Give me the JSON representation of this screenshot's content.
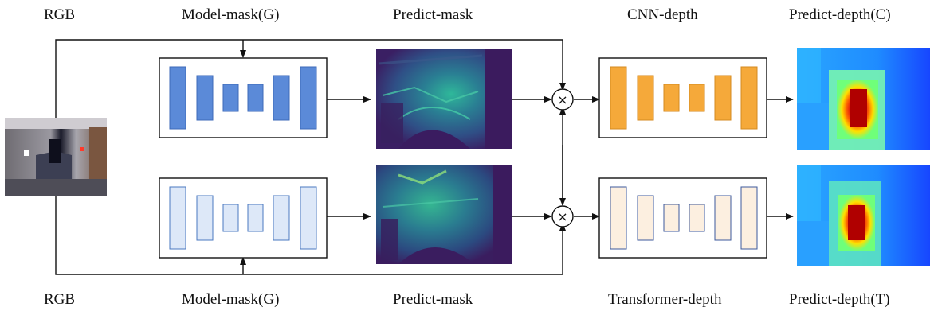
{
  "top_labels": {
    "rgb": "RGB",
    "model_mask": "Model-mask(G)",
    "predict_mask": "Predict-mask",
    "depth_net": "CNN-depth",
    "predict_depth": "Predict-depth(C)"
  },
  "bottom_labels": {
    "rgb": "RGB",
    "model_mask": "Model-mask(G)",
    "predict_mask": "Predict-mask",
    "depth_net": "Transformer-depth",
    "predict_depth": "Predict-depth(T)"
  },
  "multiply_symbol": "×",
  "colors": {
    "model_mask_top": "#5b8ad8",
    "model_mask_bottom": "#dde8f8",
    "cnn_depth": "#f5a93a",
    "transformer_depth": "#fcefe0",
    "mask_base": "#3b1b5e",
    "depth_base": "#1a5cff"
  }
}
